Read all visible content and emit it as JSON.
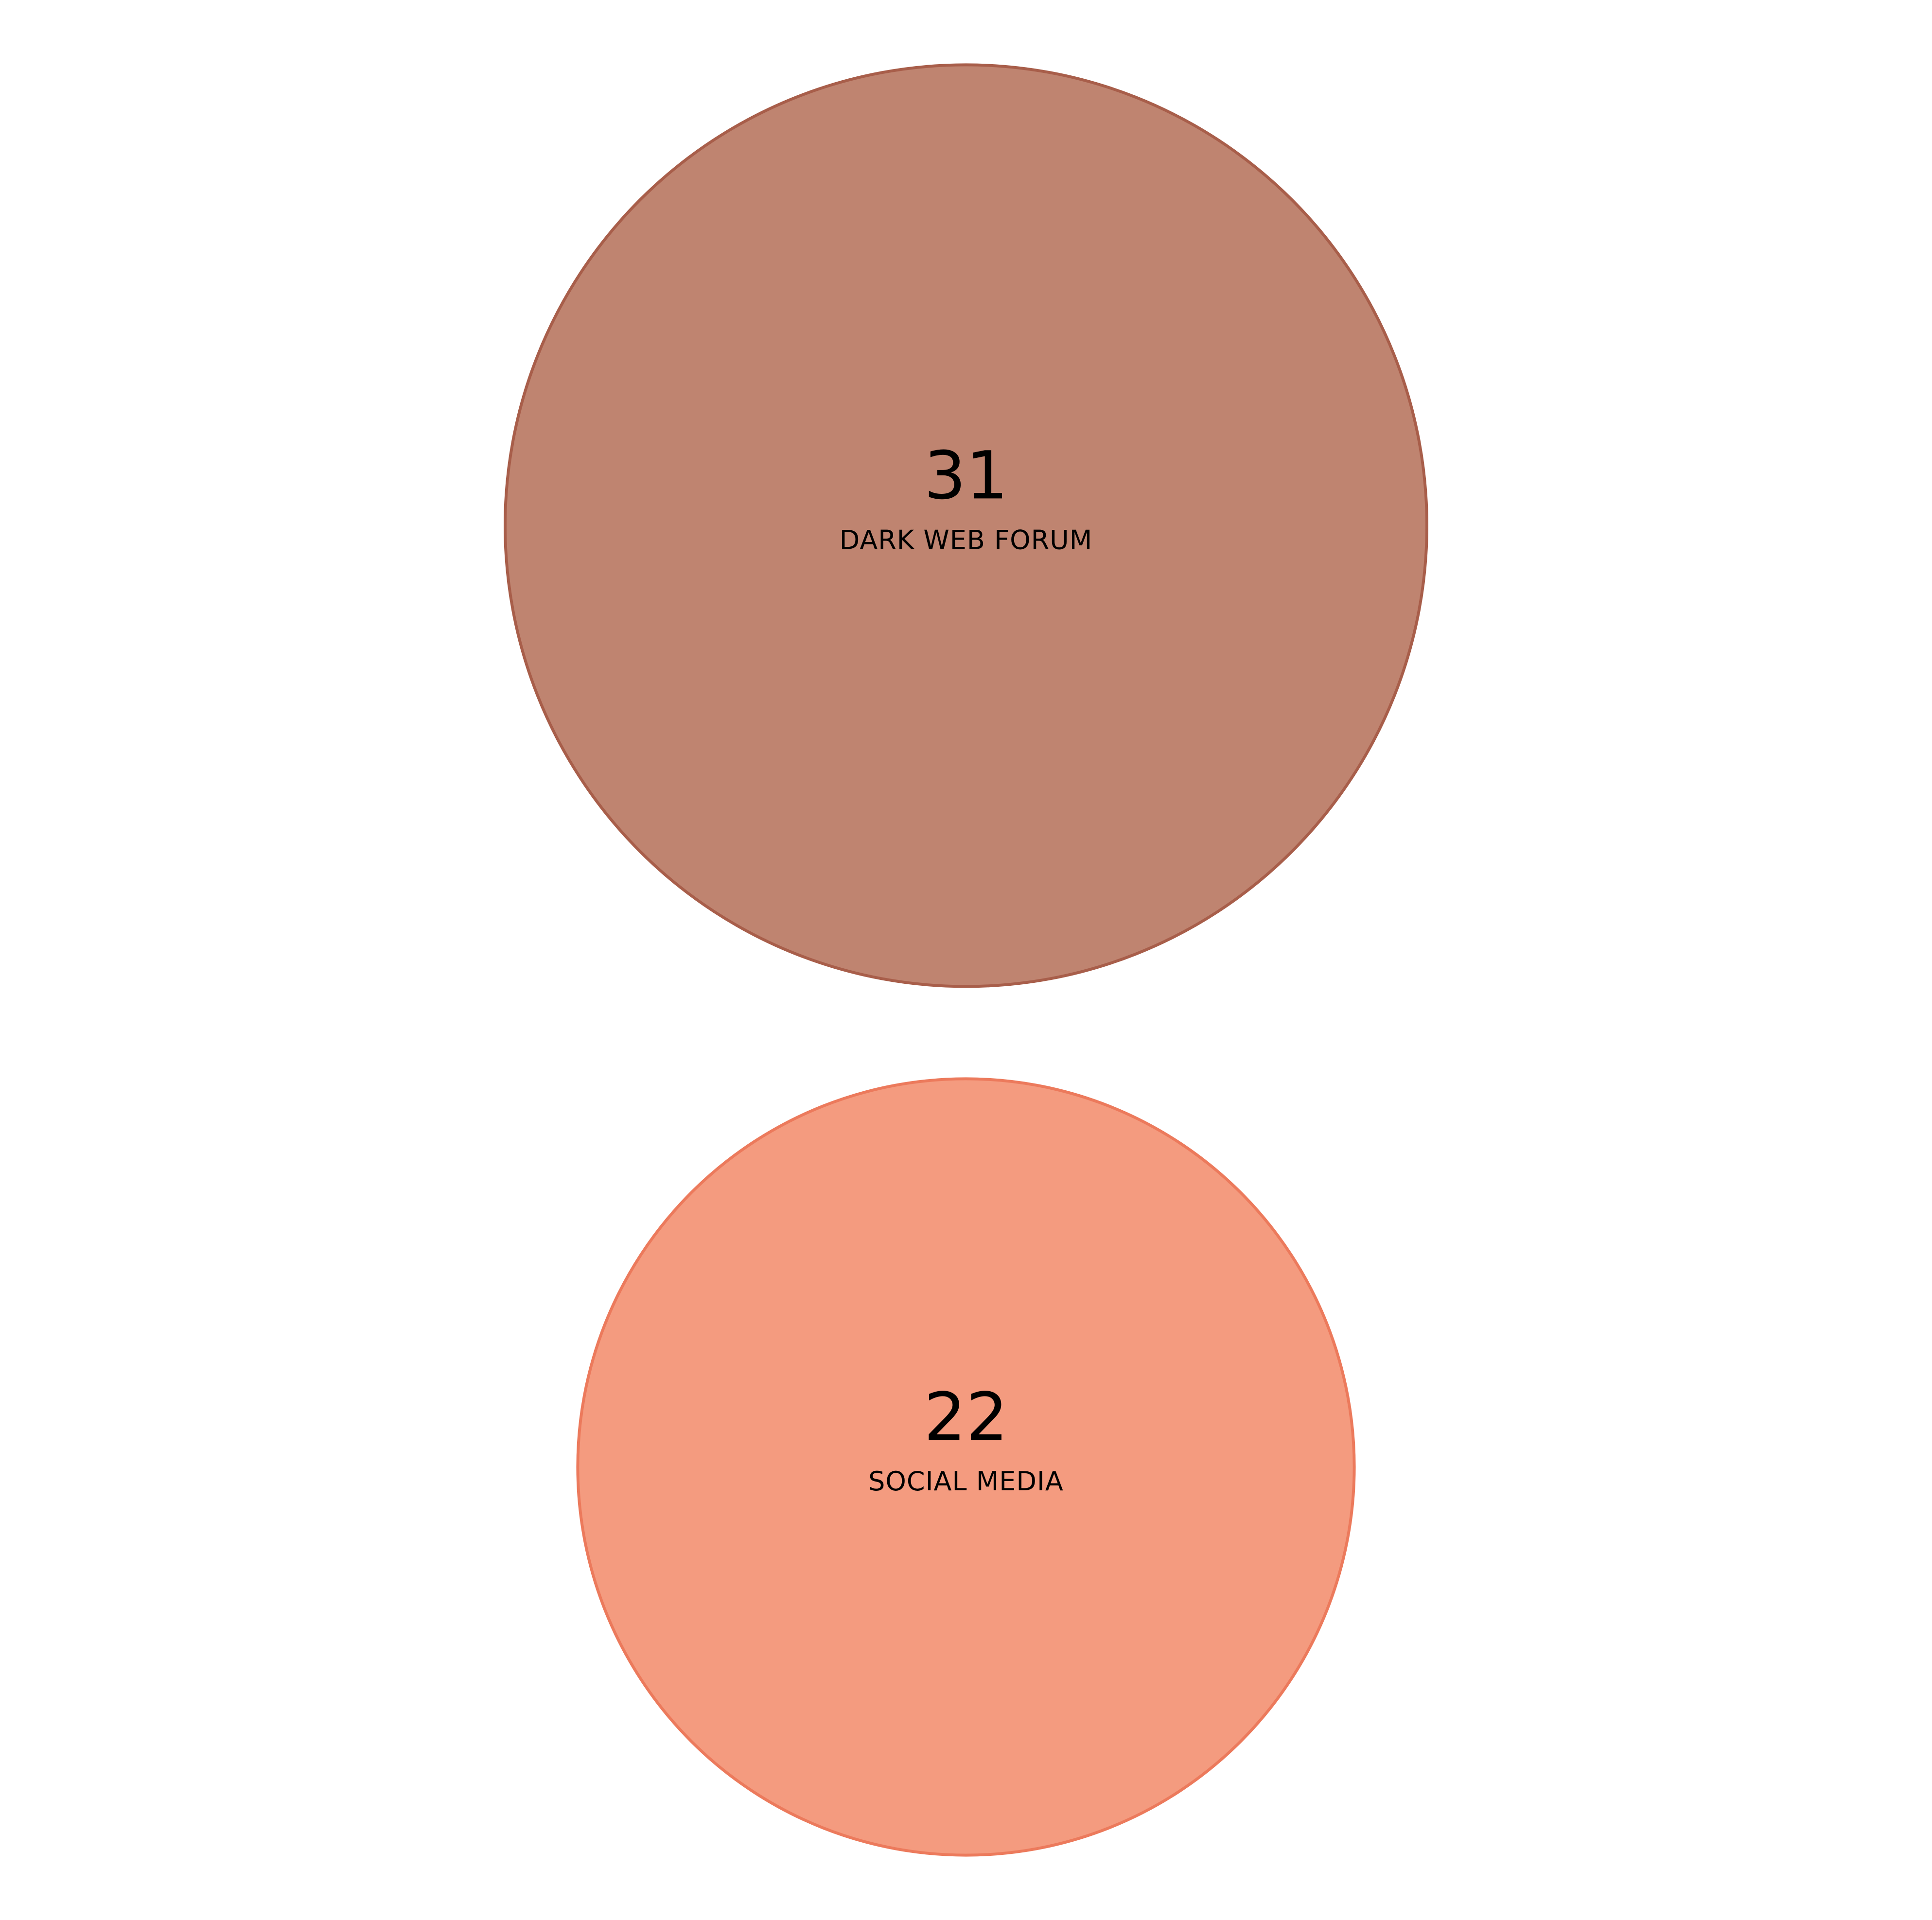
{
  "chart_data": {
    "type": "bubble",
    "series": [
      {
        "label": "DARK WEB FORUM",
        "value": 31,
        "fill": "#bf8470",
        "stroke": "#a85e4a"
      },
      {
        "label": "SOCIAL MEDIA",
        "value": 22,
        "fill": "#f49b7f",
        "stroke": "#ec7a5c"
      }
    ],
    "layout": "vertical stack",
    "legend": "none",
    "grid": false
  }
}
